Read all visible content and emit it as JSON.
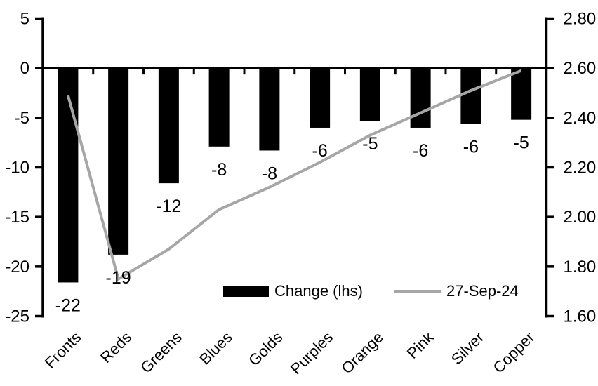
{
  "chart_data": {
    "type": "combo (bar + line, dual axis)",
    "categories": [
      "Fronts",
      "Reds",
      "Greens",
      "Blues",
      "Golds",
      "Purples",
      "Orange",
      "Pink",
      "Silver",
      "Copper"
    ],
    "series": [
      {
        "name": "Change (lhs)",
        "type": "bar",
        "axis": "left",
        "color": "#000000",
        "values": [
          -22,
          -19,
          -12,
          -8,
          -8,
          -6,
          -5,
          -6,
          -6,
          -5
        ],
        "values_precise": [
          -21.6,
          -18.8,
          -11.6,
          -7.9,
          -8.3,
          -6.0,
          -5.3,
          -6.0,
          -5.6,
          -5.2
        ],
        "data_labels": [
          "-22",
          "-19",
          "-12",
          "-8",
          "-8",
          "-6",
          "-5",
          "-6",
          "-6",
          "-5"
        ]
      },
      {
        "name": "27-Sep-24",
        "type": "line",
        "axis": "right",
        "color": "#a6a6a6",
        "values": [
          2.49,
          1.75,
          1.87,
          2.03,
          2.12,
          2.22,
          2.33,
          2.42,
          2.51,
          2.59
        ]
      }
    ],
    "left_axis": {
      "min": -25,
      "max": 5,
      "tick_step": 5,
      "ticks": [
        "5",
        "0",
        "-5",
        "-10",
        "-15",
        "-20",
        "-25"
      ]
    },
    "right_axis": {
      "min": 1.6,
      "max": 2.8,
      "tick_step": 0.2,
      "ticks": [
        "2.80",
        "2.60",
        "2.40",
        "2.20",
        "2.00",
        "1.80",
        "1.60"
      ]
    },
    "legend": [
      {
        "label": "Change (lhs)",
        "swatch": "bar",
        "color": "#000000"
      },
      {
        "label": "27-Sep-24",
        "swatch": "line",
        "color": "#a6a6a6"
      }
    ],
    "grid": false,
    "legend_position": "inside bottom-center"
  },
  "colors": {
    "background": "#ffffff",
    "bar": "#000000",
    "line": "#a6a6a6",
    "axis": "#000000",
    "text": "#000000"
  }
}
